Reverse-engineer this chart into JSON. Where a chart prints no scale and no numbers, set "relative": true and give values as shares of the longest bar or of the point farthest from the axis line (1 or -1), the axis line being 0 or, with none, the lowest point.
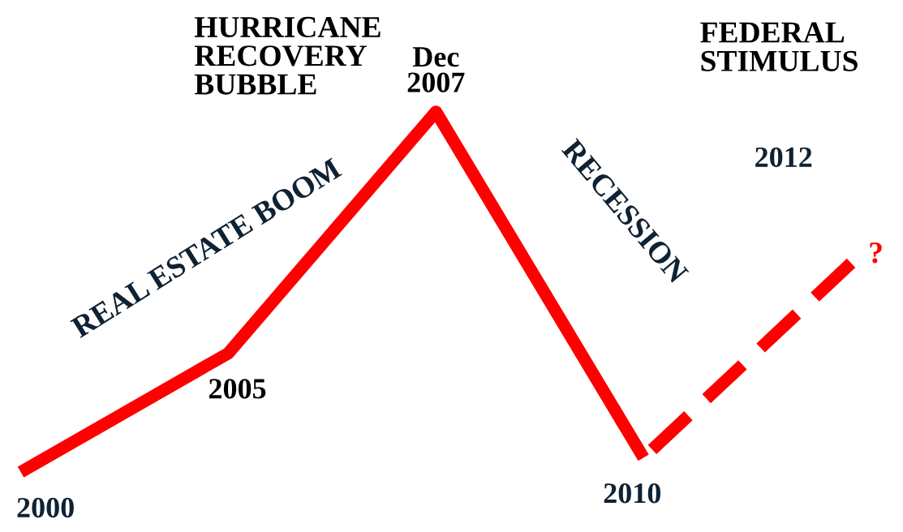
{
  "chart_data": {
    "type": "line",
    "relative": true,
    "categories": [
      "2000",
      "2005",
      "Dec\n2007",
      "2010",
      "2012"
    ],
    "series": [
      {
        "color": "#ff0000",
        "values": [
          0,
          0.33,
          1,
          0.04,
          null
        ],
        "line_style": "solid"
      },
      {
        "color": "#ff0000",
        "values": [
          null,
          null,
          null,
          0.04,
          0.58
        ],
        "line_style": "dashed"
      }
    ],
    "annotations": [
      "HURRICANE\nRECOVERY\nBUBBLE",
      "REAL ESTATE BOOM",
      "RECESSION",
      "FEDERAL\nSTIMULUS",
      "?"
    ],
    "marker": "none"
  }
}
